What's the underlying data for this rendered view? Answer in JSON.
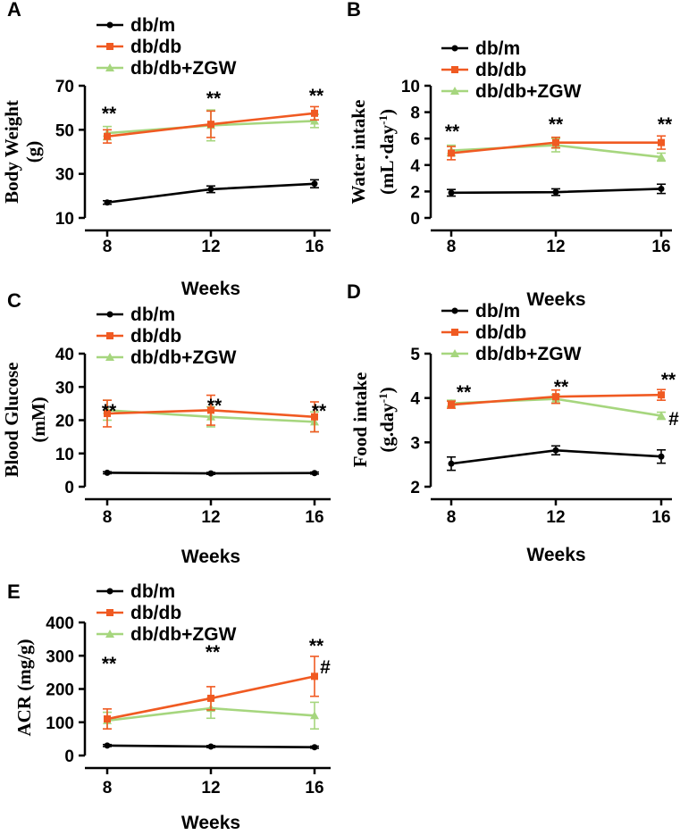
{
  "colors": {
    "dbm": "#000000",
    "dbdb": "#f05a22",
    "zgw": "#a6d67e"
  },
  "chart_data": [
    {
      "panel": "A",
      "type": "line",
      "x": [
        8,
        12,
        16
      ],
      "xticks": [
        "8",
        "12",
        "16"
      ],
      "xlabel": "Weeks",
      "ylabel": "Body Weight",
      "ylabel2": "(g)",
      "ylim": [
        10,
        70
      ],
      "yticks": [
        "10",
        "30",
        "50",
        "70"
      ],
      "legend": [
        "db/m",
        "db/db",
        "db/db+ZGW"
      ],
      "series": [
        {
          "name": "db/m",
          "values": [
            17,
            23,
            25.5
          ],
          "err": [
            0.8,
            1.5,
            1.8
          ]
        },
        {
          "name": "db/db",
          "values": [
            47,
            52.5,
            57.5
          ],
          "err": [
            3,
            6,
            3
          ]
        },
        {
          "name": "db/db+ZGW",
          "values": [
            48.5,
            52,
            54
          ],
          "err": [
            3,
            7,
            3
          ]
        }
      ],
      "annotations": [
        "**",
        "**",
        "**"
      ]
    },
    {
      "panel": "B",
      "type": "line",
      "x": [
        8,
        12,
        16
      ],
      "xticks": [
        "8",
        "12",
        "16"
      ],
      "xlabel": "Weeks",
      "ylabel": "Water intake",
      "ylabel2": "(mL·day",
      "ylabel_sup": "-1",
      "ylabel_end": ")",
      "ylim": [
        0,
        10
      ],
      "yticks": [
        "0",
        "2",
        "4",
        "6",
        "8",
        "10"
      ],
      "legend": [
        "db/m",
        "db/db",
        "db/db+ZGW"
      ],
      "series": [
        {
          "name": "db/m",
          "values": [
            1.9,
            1.95,
            2.2
          ],
          "err": [
            0.25,
            0.25,
            0.35
          ]
        },
        {
          "name": "db/db",
          "values": [
            4.9,
            5.7,
            5.7
          ],
          "err": [
            0.5,
            0.4,
            0.5
          ]
        },
        {
          "name": "db/db+ZGW",
          "values": [
            5.1,
            5.5,
            4.6
          ],
          "err": [
            0.4,
            0.5,
            0.3
          ]
        }
      ],
      "annotations": [
        "**",
        "**",
        "**"
      ]
    },
    {
      "panel": "C",
      "type": "line",
      "x": [
        8,
        12,
        16
      ],
      "xticks": [
        "8",
        "12",
        "16"
      ],
      "xlabel": "Weeks",
      "ylabel": "Blood Glucose",
      "ylabel2": "(mM)",
      "ylim": [
        0,
        40
      ],
      "yticks": [
        "0",
        "10",
        "20",
        "30",
        "40"
      ],
      "legend": [
        "db/m",
        "db/db",
        "db/db+ZGW"
      ],
      "series": [
        {
          "name": "db/m",
          "values": [
            4.2,
            4.0,
            4.1
          ],
          "err": [
            0.3,
            0.3,
            0.3
          ]
        },
        {
          "name": "db/db",
          "values": [
            22,
            23,
            21
          ],
          "err": [
            4,
            4.5,
            4.5
          ]
        },
        {
          "name": "db/db+ZGW",
          "values": [
            23,
            21,
            19.5
          ],
          "err": [
            3,
            3,
            3
          ]
        }
      ],
      "annotations": [
        "**",
        "**",
        "**"
      ]
    },
    {
      "panel": "D",
      "type": "line",
      "x": [
        8,
        12,
        16
      ],
      "xticks": [
        "8",
        "12",
        "16"
      ],
      "xlabel": "Weeks",
      "ylabel": "Food intake",
      "ylabel2": "(g.day",
      "ylabel_sup": "-1",
      "ylabel_end": ")",
      "ylim": [
        2,
        5
      ],
      "yticks": [
        "2",
        "3",
        "4",
        "5"
      ],
      "legend": [
        "db/m",
        "db/db",
        "db/db+ZGW"
      ],
      "series": [
        {
          "name": "db/m",
          "values": [
            2.52,
            2.82,
            2.68
          ],
          "err": [
            0.15,
            0.1,
            0.15
          ]
        },
        {
          "name": "db/db",
          "values": [
            3.85,
            4.03,
            4.07
          ],
          "err": [
            0.08,
            0.15,
            0.12
          ]
        },
        {
          "name": "db/db+ZGW",
          "values": [
            3.88,
            3.98,
            3.6
          ],
          "err": [
            0.07,
            0.1,
            0.08
          ]
        }
      ],
      "annotations": [
        "**",
        "**",
        "**",
        "#"
      ]
    },
    {
      "panel": "E",
      "type": "line",
      "x": [
        8,
        12,
        16
      ],
      "xticks": [
        "8",
        "12",
        "16"
      ],
      "xlabel": "Weeks",
      "ylabel": "ACR (mg/g)",
      "ylim": [
        0,
        400
      ],
      "yticks": [
        "0",
        "100",
        "200",
        "300",
        "400"
      ],
      "legend": [
        "db/m",
        "db/db",
        "db/db+ZGW"
      ],
      "series": [
        {
          "name": "db/m",
          "values": [
            30,
            27,
            25
          ],
          "err": [
            3,
            3,
            3
          ]
        },
        {
          "name": "db/db",
          "values": [
            110,
            172,
            238
          ],
          "err": [
            30,
            35,
            60
          ]
        },
        {
          "name": "db/db+ZGW",
          "values": [
            105,
            142,
            120
          ],
          "err": [
            25,
            30,
            40
          ]
        }
      ],
      "annotations": [
        "**",
        "**",
        "**",
        "#"
      ]
    }
  ]
}
